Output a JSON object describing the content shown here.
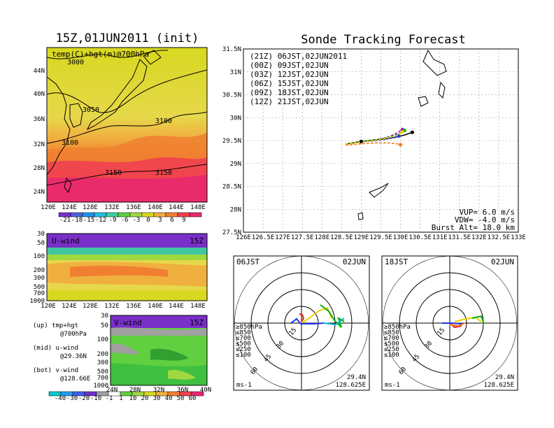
{
  "left_title": "15Z,01JUN2011 (init)",
  "main_title": "Sonde Tracking Forecast",
  "top_map": {
    "label": "temp(C)+hgt(m)@700hPa",
    "lat_ticks": [
      "44N",
      "40N",
      "36N",
      "32N",
      "28N",
      "24N"
    ],
    "lon_ticks": [
      "120E",
      "124E",
      "128E",
      "132E",
      "136E",
      "140E",
      "144E",
      "148E"
    ],
    "contours": [
      "3000",
      "3050",
      "3100",
      "3100",
      "3150",
      "3150"
    ]
  },
  "temp_colorbar": [
    "-21",
    "-18",
    "-15",
    "-12",
    "-9",
    "-6",
    "-3",
    "0",
    "3",
    "6",
    "9"
  ],
  "uwind_panel": {
    "label": "U-wind",
    "time": "15Z",
    "p_ticks": [
      "30",
      "50",
      "100",
      "200",
      "300",
      "500",
      "700",
      "1000"
    ],
    "lon_ticks": [
      "120E",
      "124E",
      "128E",
      "132E",
      "136E",
      "140E",
      "144E",
      "148E"
    ]
  },
  "vwind_panel": {
    "label": "V-wind",
    "time": "15Z",
    "p_ticks": [
      "30",
      "50",
      "100",
      "200",
      "300",
      "500",
      "700",
      "1000"
    ],
    "lat_ticks": [
      "24N",
      "28N",
      "32N",
      "36N",
      "40N"
    ]
  },
  "wind_colorbar": [
    "-40",
    "-30",
    "-20",
    "-10",
    "-1",
    "1",
    "10",
    "20",
    "30",
    "40",
    "50",
    "60"
  ],
  "legend_notes": [
    {
      "l1": "(up) tmp+hgt",
      "l2": "@700hPa"
    },
    {
      "l1": "(mid) u-wind",
      "l2": "@29.36N"
    },
    {
      "l1": "(bot) v-wind",
      "l2": "@128.66E"
    }
  ],
  "chart_data": {
    "type": "line",
    "title": "Sonde Tracking Forecast",
    "xlabel": "",
    "ylabel": "",
    "xlim": [
      126,
      133
    ],
    "ylim": [
      27.5,
      31.5
    ],
    "x_ticks": [
      "126E",
      "126.5E",
      "127E",
      "127.5E",
      "128E",
      "128.5E",
      "129E",
      "129.5E",
      "130E",
      "130.5E",
      "131E",
      "131.5E",
      "132E",
      "132.5E",
      "133E"
    ],
    "y_ticks": [
      "31.5N",
      "31N",
      "30.5N",
      "30N",
      "29.5N",
      "29N",
      "28.5N",
      "28N",
      "27.5N"
    ],
    "grid": true,
    "legend_position": "top-left",
    "series": [
      {
        "name": "(21Z)  06JST,02JUN2011",
        "color": "#000000",
        "dashed": false,
        "lon": [
          128.6,
          129.0,
          129.4,
          129.8,
          130.1,
          130.3
        ],
        "lat": [
          29.42,
          29.48,
          29.52,
          29.56,
          29.62,
          29.68
        ]
      },
      {
        "name": "(00Z)  09JST,02JUN",
        "color": "#b400b4",
        "dashed": true,
        "lon": [
          128.6,
          129.0,
          129.4,
          129.7,
          129.9,
          130.05
        ],
        "lat": [
          29.42,
          29.48,
          29.52,
          29.58,
          29.66,
          29.74
        ]
      },
      {
        "name": "(03Z)  12JST,02JUN",
        "color": "#2030f0",
        "dashed": true,
        "lon": [
          128.6,
          129.0,
          129.4,
          129.7,
          129.95
        ],
        "lat": [
          29.42,
          29.47,
          29.5,
          29.54,
          29.6
        ]
      },
      {
        "name": "(06Z)  15JST,02JUN",
        "color": "#00b000",
        "dashed": true,
        "lon": [
          128.6,
          129.0,
          129.4,
          129.7,
          129.95,
          130.1
        ],
        "lat": [
          29.42,
          29.48,
          29.52,
          29.57,
          29.64,
          29.72
        ]
      },
      {
        "name": "(09Z)  18JST,02JUN",
        "color": "#f0d000",
        "dashed": true,
        "lon": [
          128.6,
          129.0,
          129.4,
          129.7,
          129.95,
          130.05
        ],
        "lat": [
          29.42,
          29.47,
          29.51,
          29.56,
          29.62,
          29.69
        ]
      },
      {
        "name": "(12Z)  21JST,02JUN",
        "color": "#f08020",
        "dashed": true,
        "lon": [
          128.6,
          129.0,
          129.4,
          129.7,
          129.9,
          130.0
        ],
        "lat": [
          29.4,
          29.43,
          29.45,
          29.45,
          29.43,
          29.41
        ]
      }
    ],
    "annotations": {
      "vup": "VUP=  6.0  m/s",
      "vdw": "VDW=  -4.0  m/s",
      "burst": "Burst Alt=  18.0  km"
    }
  },
  "hodo_left": {
    "time": "06JST",
    "date": "02JUN",
    "rings": [
      "15",
      "30",
      "45",
      "60"
    ],
    "layers": [
      {
        "label": "≥850hPa",
        "color": "#e02020"
      },
      {
        "label": "≤850",
        "color": "#f08020"
      },
      {
        "label": "≤700",
        "color": "#f0d000"
      },
      {
        "label": "≤500",
        "color": "#00b000"
      },
      {
        "label": "≤250",
        "color": "#00b0d0"
      },
      {
        "label": "≤100",
        "color": "#2030f0"
      }
    ],
    "unit": "ms-1",
    "lat": "29.4N",
    "lon": "128.625E"
  },
  "hodo_right": {
    "time": "18JST",
    "date": "02JUN",
    "rings": [
      "15",
      "30",
      "45",
      "60"
    ],
    "layers": [
      {
        "label": "≥850hPa",
        "color": "#e02020"
      },
      {
        "label": "≤850",
        "color": "#f08020"
      },
      {
        "label": "≤700",
        "color": "#f0d000"
      },
      {
        "label": "≤500",
        "color": "#00b000"
      },
      {
        "label": "≤250",
        "color": "#00b0d0"
      },
      {
        "label": "≤100",
        "color": "#2030f0"
      }
    ],
    "unit": "ms-1",
    "lat": "29.4N",
    "lon": "128.625E"
  }
}
